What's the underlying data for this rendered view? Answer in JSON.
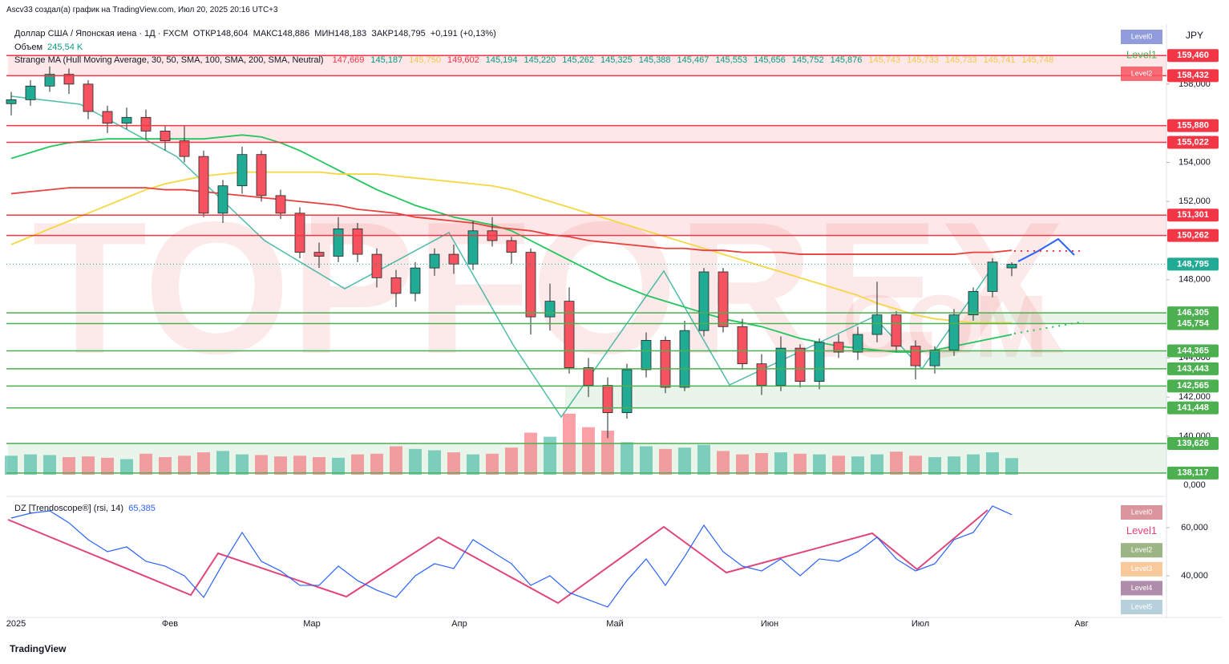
{
  "header": {
    "credit": "Ascv33 создал(а) график на TradingView.com, Июл 20, 2025 20:16 UTC+3",
    "symbol": "Доллар США / Японская иена · 1Д · FXCM",
    "open": "ОТКР148,604",
    "high": "МАКС148,886",
    "low": "МИН148,183",
    "close": "ЗАКР148,795",
    "change": "+0,191 (+0,13%)",
    "volume_label": "Объем",
    "volume_value": "245,54 K",
    "indicator": "Strange MA (Hull Moving Average, 30, 50, SMA, 100, SMA, 200, SMA, Neutral)",
    "indicator_values": [
      {
        "text": "147,669",
        "color": "#f23645"
      },
      {
        "text": "145,187",
        "color": "#089981"
      },
      {
        "text": "145,750",
        "color": "#f2c94c"
      },
      {
        "text": "149,602",
        "color": "#f23645"
      },
      {
        "text": "145,194",
        "color": "#089981"
      },
      {
        "text": "145,220",
        "color": "#089981"
      },
      {
        "text": "145,262",
        "color": "#089981"
      },
      {
        "text": "145,325",
        "color": "#089981"
      },
      {
        "text": "145,388",
        "color": "#089981"
      },
      {
        "text": "145,467",
        "color": "#089981"
      },
      {
        "text": "145,553",
        "color": "#089981"
      },
      {
        "text": "145,656",
        "color": "#089981"
      },
      {
        "text": "145,752",
        "color": "#089981"
      },
      {
        "text": "145,876",
        "color": "#089981"
      },
      {
        "text": "145,743",
        "color": "#f2c94c"
      },
      {
        "text": "145,733",
        "color": "#f2c94c"
      },
      {
        "text": "145,733",
        "color": "#f2c94c"
      },
      {
        "text": "145,741",
        "color": "#f2c94c"
      },
      {
        "text": "145,748",
        "color": "#f2c94c"
      }
    ],
    "rsi_label": "DZ [Trendoscope®] (rsi, 14)",
    "rsi_value": "65,385",
    "currency": "JPY",
    "footer": "TradingView"
  },
  "watermark": {
    "main": "TOPFOREX",
    "suffix": ".COM"
  },
  "level_legends": {
    "price": [
      {
        "text": "Level0",
        "color": "#7e8bd6"
      },
      {
        "text": "Level1",
        "color": "#4caf50"
      },
      {
        "text": "Level2",
        "color": "#f7525f"
      }
    ],
    "rsi": [
      {
        "text": "Level0",
        "color": "#d4838c"
      },
      {
        "text": "Level1",
        "color": "#ec407a"
      },
      {
        "text": "Level2",
        "color": "#8aa86e"
      },
      {
        "text": "Level3",
        "color": "#f6c089"
      },
      {
        "text": "Level4",
        "color": "#a1789a"
      },
      {
        "text": "Level5",
        "color": "#a9c8d6"
      }
    ]
  },
  "chart_data": {
    "type": "candlestick",
    "ylim": [
      137.7,
      161.07
    ],
    "yticks": [
      {
        "value": 158,
        "label": "158,000"
      },
      {
        "value": 154,
        "label": "154,000"
      },
      {
        "value": 152,
        "label": "152,000"
      },
      {
        "value": 148,
        "label": "148,000"
      },
      {
        "value": 144,
        "label": "144,000"
      },
      {
        "value": 142,
        "label": "142,000"
      },
      {
        "value": 140,
        "label": "140,000"
      }
    ],
    "x_labels": [
      "2025",
      "Фев",
      "Мар",
      "Апр",
      "Май",
      "Июн",
      "Июл",
      "Авг"
    ],
    "up_color": "#22ab94",
    "down_color": "#f7525f",
    "candles": [
      [
        157.0,
        157.6,
        156.4,
        157.2
      ],
      [
        157.2,
        158.2,
        156.9,
        157.9
      ],
      [
        157.9,
        158.9,
        157.6,
        158.5
      ],
      [
        158.5,
        158.8,
        157.5,
        158.0
      ],
      [
        158.0,
        158.2,
        156.2,
        156.6
      ],
      [
        156.6,
        156.9,
        155.5,
        156.0
      ],
      [
        156.0,
        156.8,
        155.7,
        156.3
      ],
      [
        156.3,
        156.7,
        155.2,
        155.6
      ],
      [
        155.6,
        155.9,
        154.6,
        155.1
      ],
      [
        155.1,
        155.9,
        154.0,
        154.3
      ],
      [
        154.3,
        154.6,
        151.2,
        151.4
      ],
      [
        151.4,
        153.1,
        150.9,
        152.8
      ],
      [
        152.8,
        154.8,
        152.4,
        154.4
      ],
      [
        154.4,
        154.6,
        152.0,
        152.3
      ],
      [
        152.3,
        152.6,
        151.1,
        151.4
      ],
      [
        151.4,
        151.7,
        149.1,
        149.4
      ],
      [
        149.4,
        149.9,
        148.6,
        149.2
      ],
      [
        149.2,
        151.2,
        148.9,
        150.6
      ],
      [
        150.6,
        150.9,
        148.9,
        149.3
      ],
      [
        149.3,
        149.6,
        147.6,
        148.1
      ],
      [
        148.1,
        148.5,
        146.6,
        147.3
      ],
      [
        147.3,
        148.9,
        146.9,
        148.6
      ],
      [
        148.6,
        149.6,
        148.2,
        149.3
      ],
      [
        149.3,
        149.8,
        148.3,
        148.8
      ],
      [
        148.8,
        151.0,
        148.5,
        150.5
      ],
      [
        150.5,
        151.2,
        149.7,
        150.0
      ],
      [
        150.0,
        150.2,
        148.8,
        149.4
      ],
      [
        149.4,
        149.6,
        145.2,
        146.1
      ],
      [
        146.1,
        147.8,
        145.4,
        146.9
      ],
      [
        146.9,
        147.6,
        143.2,
        143.5
      ],
      [
        143.5,
        144.0,
        142.0,
        142.6
      ],
      [
        142.6,
        143.0,
        139.9,
        141.2
      ],
      [
        141.2,
        143.7,
        140.9,
        143.4
      ],
      [
        143.4,
        145.3,
        143.0,
        144.9
      ],
      [
        144.9,
        145.1,
        142.2,
        142.5
      ],
      [
        142.5,
        145.9,
        142.3,
        145.4
      ],
      [
        145.4,
        148.6,
        145.1,
        148.4
      ],
      [
        148.4,
        148.6,
        145.3,
        145.6
      ],
      [
        145.6,
        146.0,
        143.4,
        143.7
      ],
      [
        143.7,
        144.2,
        142.1,
        142.6
      ],
      [
        142.6,
        145.1,
        142.3,
        144.5
      ],
      [
        144.5,
        144.7,
        142.5,
        142.8
      ],
      [
        142.8,
        145.0,
        142.4,
        144.8
      ],
      [
        144.8,
        145.2,
        144.0,
        144.3
      ],
      [
        144.3,
        145.6,
        143.9,
        145.2
      ],
      [
        145.2,
        147.9,
        144.8,
        146.2
      ],
      [
        146.2,
        146.4,
        144.3,
        144.6
      ],
      [
        144.6,
        144.9,
        142.9,
        143.6
      ],
      [
        143.6,
        144.6,
        143.2,
        144.4
      ],
      [
        144.4,
        146.5,
        144.1,
        146.2
      ],
      [
        146.2,
        147.6,
        145.9,
        147.4
      ],
      [
        147.4,
        149.1,
        147.1,
        148.9
      ],
      [
        148.604,
        148.886,
        148.183,
        148.795
      ]
    ],
    "volume": [
      280,
      300,
      290,
      260,
      270,
      250,
      230,
      310,
      260,
      280,
      330,
      350,
      300,
      290,
      270,
      280,
      260,
      250,
      300,
      310,
      420,
      380,
      360,
      330,
      300,
      310,
      400,
      620,
      560,
      900,
      700,
      650,
      480,
      420,
      380,
      400,
      440,
      350,
      300,
      320,
      330,
      310,
      300,
      280,
      270,
      300,
      340,
      280,
      260,
      270,
      300,
      330,
      245.54
    ],
    "volume_ylim": [
      0,
      1300
    ],
    "volume_ticks": [
      {
        "value": 0,
        "label": "0,000"
      }
    ],
    "ma": [
      {
        "color": "#22c55e",
        "values": [
          154.2,
          154.5,
          154.8,
          155.0,
          155.1,
          155.2,
          155.2,
          155.2,
          155.2,
          155.2,
          155.2,
          155.3,
          155.4,
          155.3,
          155.0,
          154.6,
          154.1,
          153.6,
          153.1,
          152.6,
          152.2,
          151.8,
          151.5,
          151.2,
          151.0,
          150.8,
          150.5,
          150.0,
          149.5,
          149.0,
          148.5,
          148.0,
          147.6,
          147.2,
          146.9,
          146.6,
          146.3,
          146.0,
          145.8,
          145.6,
          145.3,
          145.0,
          144.8,
          144.6,
          144.5,
          144.4,
          144.3,
          144.3,
          144.4,
          144.6,
          144.8,
          145.0,
          145.2
        ]
      },
      {
        "color": "#f5d742",
        "values": [
          149.8,
          150.2,
          150.6,
          151.0,
          151.4,
          151.8,
          152.2,
          152.6,
          152.9,
          153.1,
          153.3,
          153.4,
          153.5,
          153.5,
          153.5,
          153.5,
          153.5,
          153.4,
          153.4,
          153.4,
          153.3,
          153.2,
          153.1,
          153.0,
          152.9,
          152.8,
          152.6,
          152.3,
          152.0,
          151.7,
          151.4,
          151.1,
          150.8,
          150.5,
          150.2,
          149.9,
          149.6,
          149.3,
          149.0,
          148.7,
          148.4,
          148.1,
          147.8,
          147.5,
          147.2,
          146.8,
          146.5,
          146.2,
          146.0,
          145.9,
          145.8,
          145.8,
          145.8
        ]
      },
      {
        "color": "#e8413d",
        "values": [
          152.4,
          152.5,
          152.6,
          152.7,
          152.7,
          152.7,
          152.7,
          152.7,
          152.6,
          152.6,
          152.5,
          152.4,
          152.3,
          152.2,
          152.1,
          152.0,
          151.9,
          151.8,
          151.6,
          151.5,
          151.4,
          151.2,
          151.1,
          151.0,
          150.9,
          150.7,
          150.6,
          150.5,
          150.3,
          150.2,
          150.0,
          149.9,
          149.8,
          149.7,
          149.6,
          149.6,
          149.5,
          149.5,
          149.4,
          149.4,
          149.4,
          149.3,
          149.3,
          149.3,
          149.3,
          149.3,
          149.3,
          149.3,
          149.3,
          149.3,
          149.4,
          149.4,
          149.5
        ]
      }
    ],
    "levels": [
      {
        "value": 159.46,
        "label": "159,460",
        "color": "#f23645"
      },
      {
        "value": 158.432,
        "label": "158,432",
        "color": "#f23645"
      },
      {
        "value": 155.88,
        "label": "155,880",
        "color": "#f23645"
      },
      {
        "value": 155.022,
        "label": "155,022",
        "color": "#f23645"
      },
      {
        "value": 151.301,
        "label": "151,301",
        "color": "#f23645"
      },
      {
        "value": 150.262,
        "label": "150,262",
        "color": "#f23645"
      },
      {
        "value": 148.795,
        "label": "148,795",
        "color": "#22ab94"
      },
      {
        "value": 146.305,
        "label": "146,305",
        "color": "#4caf50"
      },
      {
        "value": 145.754,
        "label": "145,754",
        "color": "#4caf50"
      },
      {
        "value": 144.365,
        "label": "144,365",
        "color": "#4caf50"
      },
      {
        "value": 143.443,
        "label": "143,443",
        "color": "#4caf50"
      },
      {
        "value": 142.565,
        "label": "142,565",
        "color": "#4caf50"
      },
      {
        "value": 141.448,
        "label": "141,448",
        "color": "#4caf50"
      },
      {
        "value": 139.626,
        "label": "139,626",
        "color": "#4caf50"
      },
      {
        "value": 138.117,
        "label": "138,117",
        "color": "#4caf50"
      }
    ],
    "rsi": {
      "color": "#2962ff",
      "ylim": [
        24.3,
        71
      ],
      "yticks": [
        {
          "value": 60,
          "label": "60,000"
        },
        {
          "value": 40,
          "label": "40,000"
        }
      ],
      "values": [
        64,
        66,
        67,
        62,
        55,
        50,
        52,
        46,
        44,
        40,
        31,
        45,
        58,
        46,
        42,
        36,
        36,
        44,
        38,
        34,
        31,
        40,
        45,
        43,
        55,
        50,
        45,
        36,
        40,
        33,
        30,
        27,
        38,
        47,
        36,
        48,
        61,
        50,
        44,
        42,
        47,
        40,
        47,
        46,
        50,
        56,
        47,
        42,
        45,
        55,
        58,
        69,
        65.385
      ]
    }
  }
}
